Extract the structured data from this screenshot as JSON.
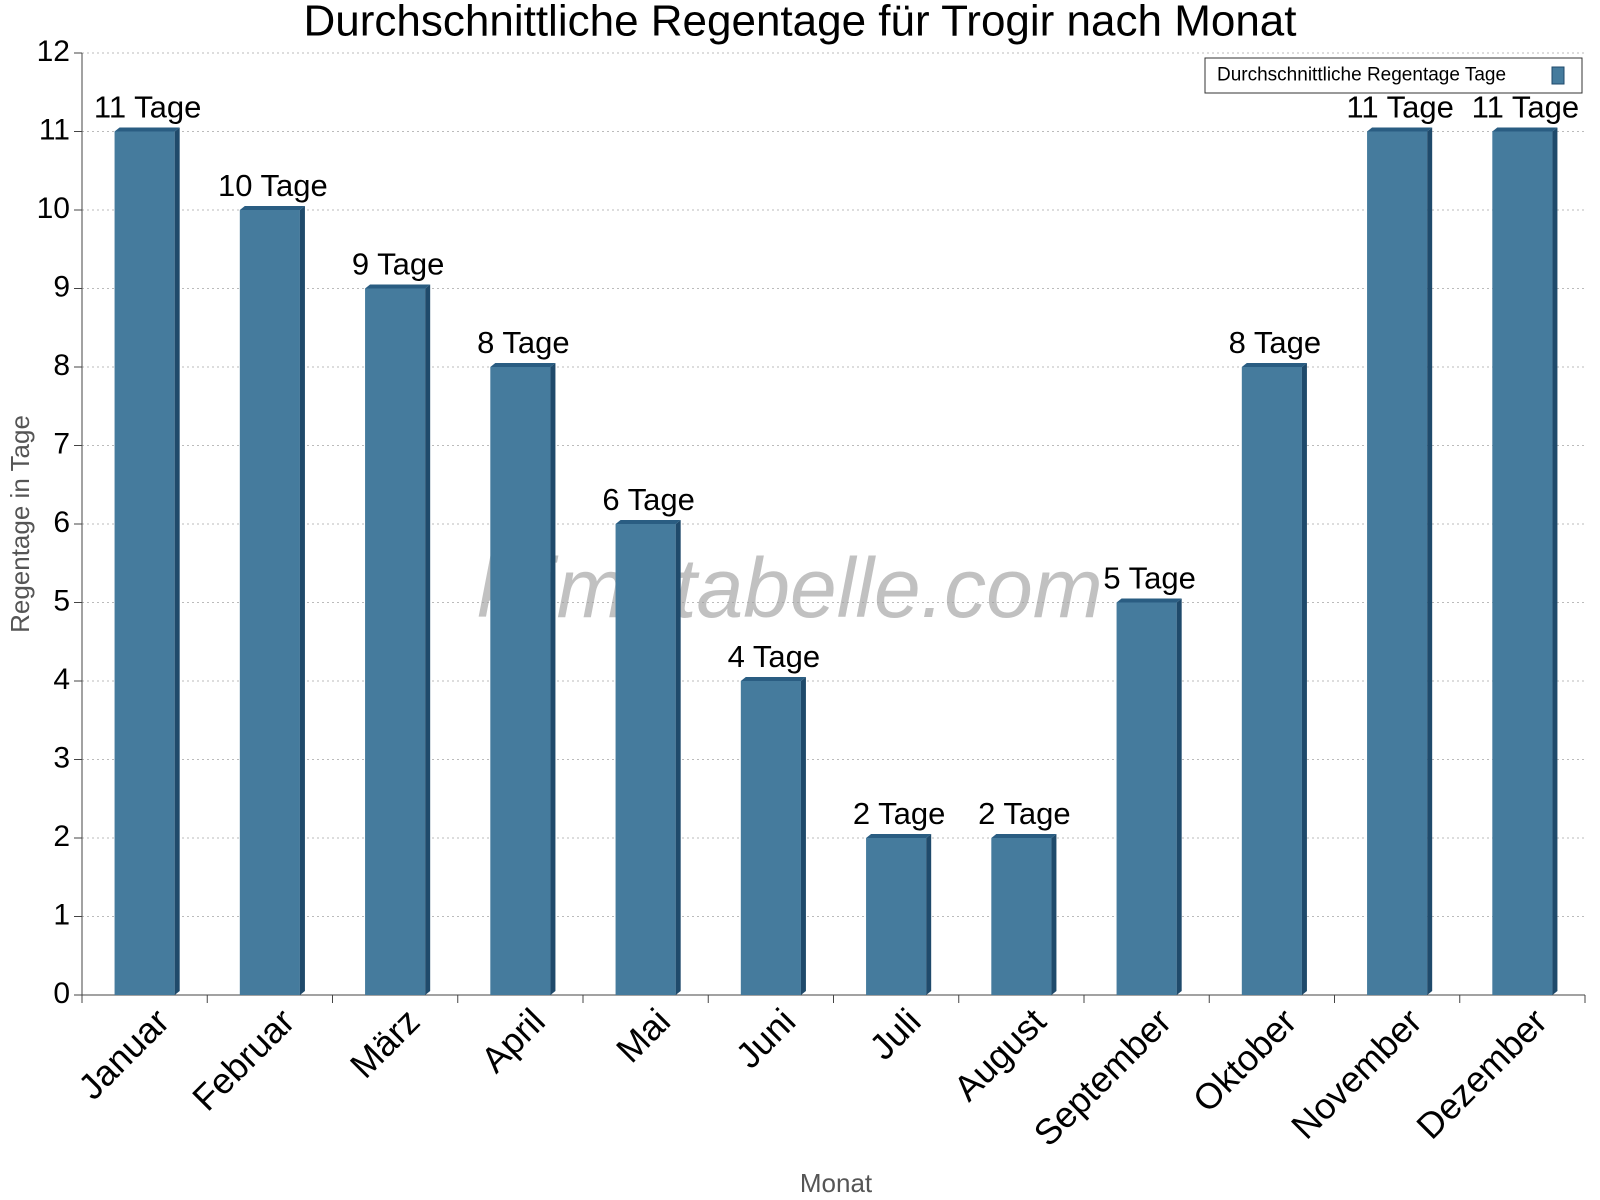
{
  "chart_data": {
    "type": "bar",
    "title": "Durchschnittliche Regentage für Trogir nach Monat",
    "x_label": "Monat",
    "y_label": "Regentage in Tage",
    "watermark": "klimatabelle.com",
    "categories": [
      "Januar",
      "Februar",
      "März",
      "April",
      "Mai",
      "Juni",
      "Juli",
      "August",
      "September",
      "Oktober",
      "November",
      "Dezember"
    ],
    "series": [
      {
        "name": "Durchschnittliche Regentage Tage",
        "color": "#457b9d",
        "values": [
          11,
          10,
          9,
          8,
          6,
          4,
          2,
          2,
          5,
          8,
          11,
          11
        ],
        "value_labels": [
          "11 Tage",
          "10 Tage",
          "9 Tage",
          "8 Tage",
          "6 Tage",
          "4 Tage",
          "2 Tage",
          "2 Tage",
          "5 Tage",
          "8 Tage",
          "11 Tage",
          "11 Tage"
        ]
      }
    ],
    "ylim": [
      0,
      12
    ],
    "yticks": [
      0,
      1,
      2,
      3,
      4,
      5,
      6,
      7,
      8,
      9,
      10,
      11,
      12
    ],
    "grid": true,
    "legend": "top-right"
  }
}
